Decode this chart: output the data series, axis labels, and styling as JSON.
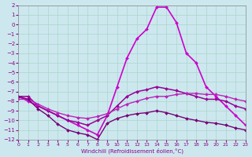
{
  "background_color": "#cce8ee",
  "grid_color": "#aad4cc",
  "line_color": "#880088",
  "xlabel": "Windchill (Refroidissement éolien,°C)",
  "xlim": [
    0,
    23
  ],
  "ylim": [
    -12,
    2
  ],
  "xticks": [
    0,
    1,
    2,
    3,
    4,
    5,
    6,
    7,
    8,
    9,
    10,
    11,
    12,
    13,
    14,
    15,
    16,
    17,
    18,
    19,
    20,
    21,
    22,
    23
  ],
  "yticks": [
    2,
    1,
    0,
    -1,
    -2,
    -3,
    -4,
    -5,
    -6,
    -7,
    -8,
    -9,
    -10,
    -11,
    -12
  ],
  "series": [
    {
      "x": [
        0,
        1,
        2,
        3,
        4,
        5,
        6,
        7,
        8,
        9,
        10,
        11,
        12,
        13,
        14,
        15,
        16,
        17,
        18,
        19,
        20,
        21,
        22,
        23
      ],
      "y": [
        -7.5,
        -8.0,
        -8.5,
        -9.0,
        -9.5,
        -10.0,
        -10.5,
        -11.0,
        -11.5,
        -9.5,
        -6.5,
        -3.5,
        -1.5,
        -0.5,
        1.8,
        1.8,
        0.2,
        -3.0,
        -4.0,
        -6.5,
        -7.5,
        -8.5,
        -9.5,
        -10.5
      ],
      "color": "#cc00cc",
      "lw": 1.2
    },
    {
      "x": [
        0,
        1,
        2,
        3,
        4,
        5,
        6,
        7,
        8,
        9,
        10,
        11,
        12,
        13,
        14,
        15,
        16,
        17,
        18,
        19,
        20,
        21,
        22,
        23
      ],
      "y": [
        -7.5,
        -7.5,
        -8.5,
        -9.0,
        -9.5,
        -10.0,
        -10.2,
        -10.5,
        -10.0,
        -9.5,
        -8.5,
        -7.5,
        -7.0,
        -6.8,
        -6.5,
        -6.7,
        -6.9,
        -7.2,
        -7.5,
        -7.8,
        -7.8,
        -8.0,
        -8.5,
        -8.8
      ],
      "color": "#990099",
      "lw": 1.1
    },
    {
      "x": [
        0,
        1,
        2,
        3,
        4,
        5,
        6,
        7,
        8,
        9,
        10,
        11,
        12,
        13,
        14,
        15,
        16,
        17,
        18,
        19,
        20,
        21,
        22,
        23
      ],
      "y": [
        -7.8,
        -7.8,
        -8.3,
        -8.8,
        -9.2,
        -9.5,
        -9.7,
        -9.8,
        -9.6,
        -9.3,
        -8.8,
        -8.3,
        -8.0,
        -7.7,
        -7.5,
        -7.5,
        -7.3,
        -7.2,
        -7.2,
        -7.3,
        -7.3,
        -7.5,
        -7.8,
        -8.0
      ],
      "color": "#bb22bb",
      "lw": 1.0
    },
    {
      "x": [
        0,
        1,
        2,
        3,
        4,
        5,
        6,
        7,
        8,
        9,
        10,
        11,
        12,
        13,
        14,
        15,
        16,
        17,
        18,
        19,
        20,
        21,
        22,
        23
      ],
      "y": [
        -7.5,
        -7.8,
        -8.8,
        -9.5,
        -10.4,
        -11.0,
        -11.3,
        -11.5,
        -12.0,
        -10.3,
        -9.8,
        -9.5,
        -9.3,
        -9.2,
        -9.0,
        -9.2,
        -9.5,
        -9.8,
        -10.0,
        -10.2,
        -10.3,
        -10.5,
        -10.8,
        -11.0
      ],
      "color": "#770077",
      "lw": 1.0
    }
  ]
}
